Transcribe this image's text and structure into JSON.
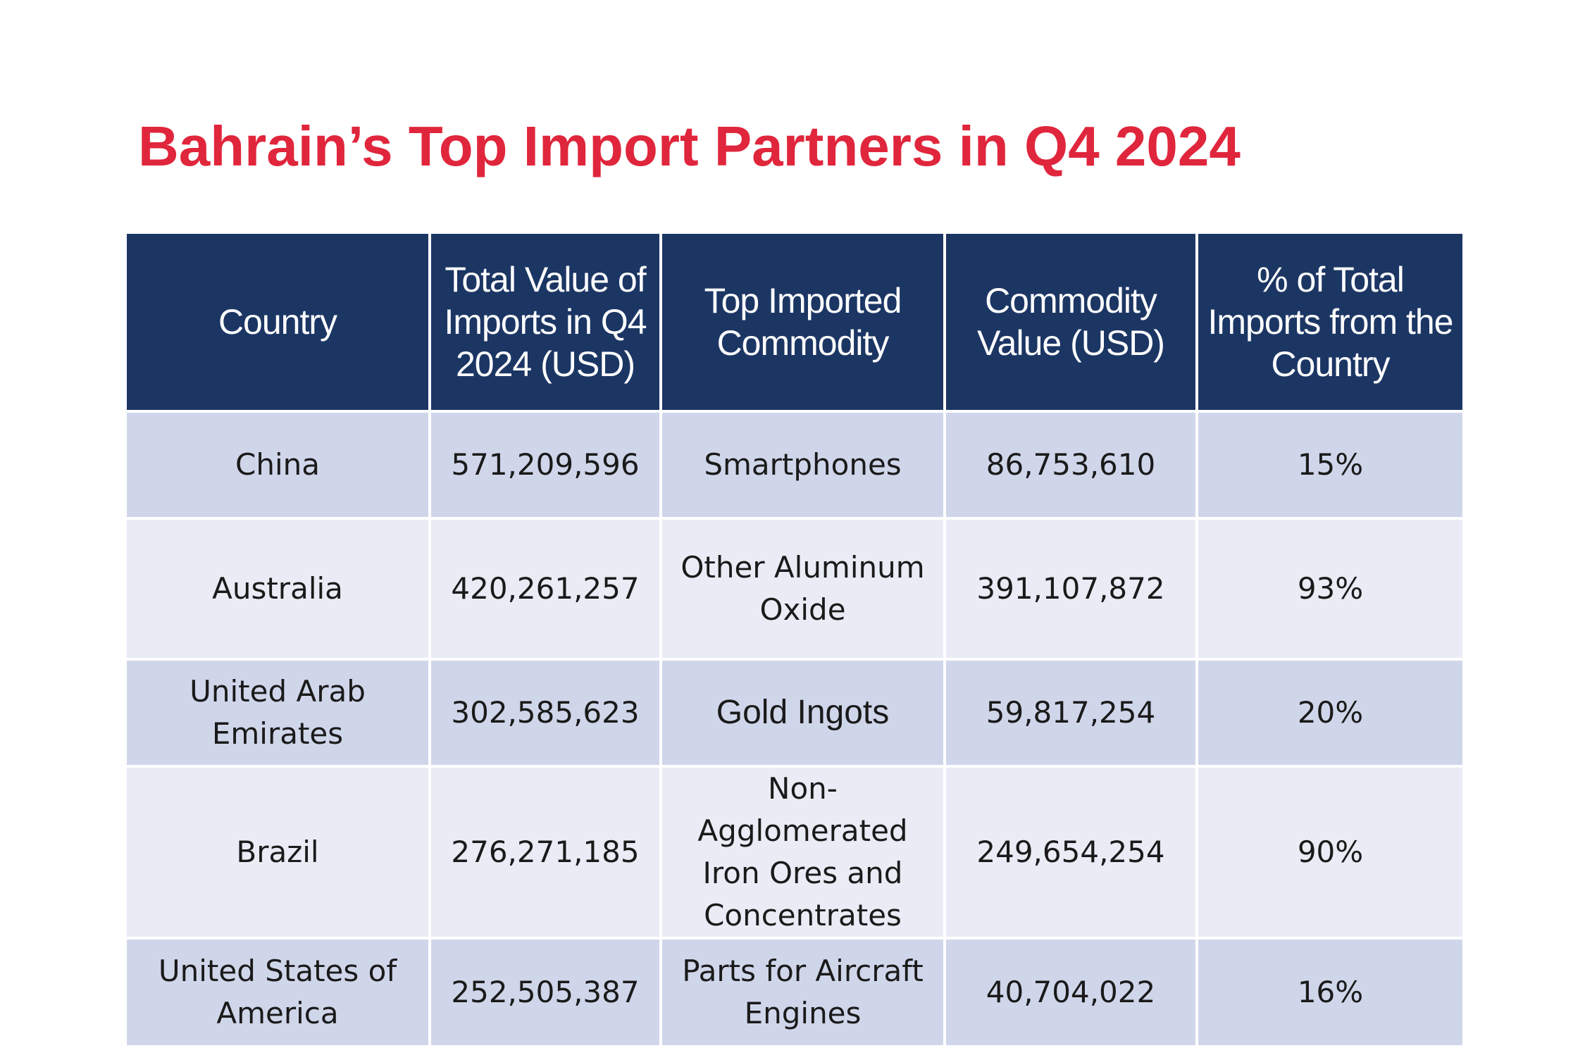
{
  "title": "Bahrain’s Top Import Partners in Q4 2024",
  "table": {
    "headers": [
      "Country",
      "Total Value of Imports in Q4 2024 (USD)",
      "Top Imported Commodity",
      "Commodity Value (USD)",
      "% of Total Imports from the Country"
    ],
    "rows": [
      {
        "country": "China",
        "total_value": "571,209,596",
        "commodity": "Smartphones",
        "commodity_value": "86,753,610",
        "percent": "15%"
      },
      {
        "country": "Australia",
        "total_value": "420,261,257",
        "commodity": "Other Aluminum Oxide",
        "commodity_value": "391,107,872",
        "percent": "93%"
      },
      {
        "country": "United Arab Emirates",
        "total_value": "302,585,623",
        "commodity": "Gold Ingots",
        "commodity_value": "59,817,254",
        "percent": "20%"
      },
      {
        "country": "Brazil",
        "total_value": "276,271,185",
        "commodity": "Non-Agglomerated Iron Ores and Concentrates",
        "commodity_value": "249,654,254",
        "percent": "90%"
      },
      {
        "country": "United States of America",
        "total_value": "252,505,387",
        "commodity": "Parts for Aircraft Engines",
        "commodity_value": "40,704,022",
        "percent": "16%"
      }
    ]
  },
  "colors": {
    "title": "#e0263c",
    "header_bg": "#1c3664",
    "header_text": "#ffffff",
    "row_odd": "#d0d6ea",
    "row_even": "#e9ecf5"
  }
}
